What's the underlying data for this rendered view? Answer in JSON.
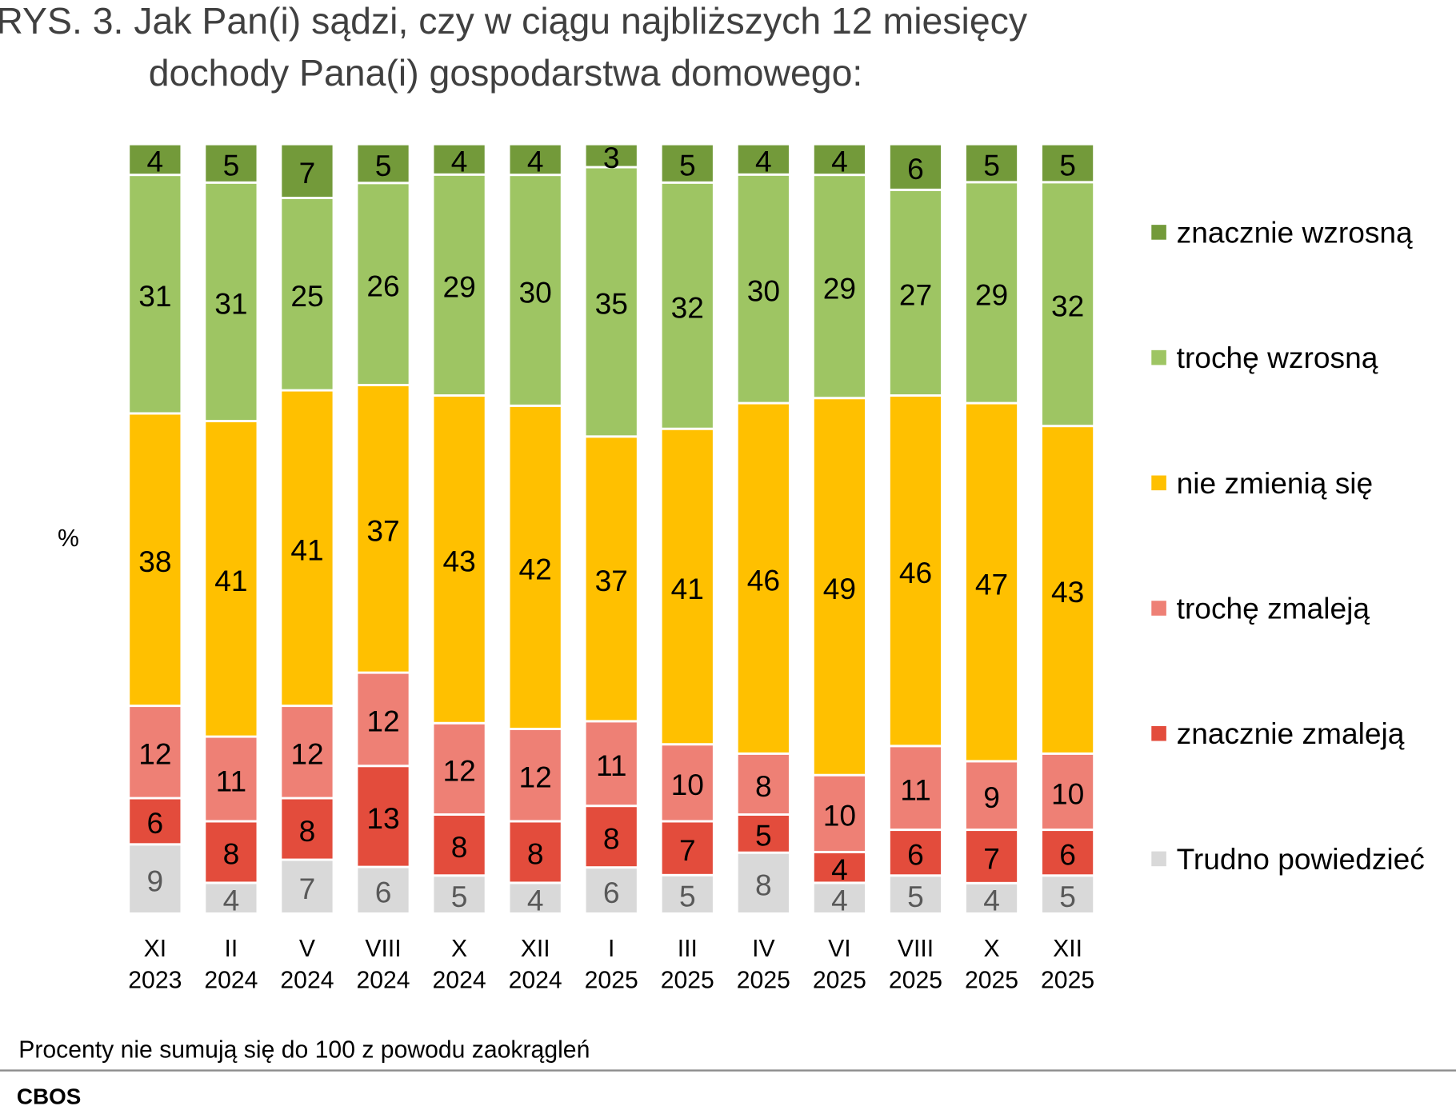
{
  "chart_data": {
    "type": "bar",
    "stacked": true,
    "orientation": "vertical",
    "title_line1": "RYS. 3. Jak Pan(i) sądzi, czy w ciągu najbliższych 12 miesięcy",
    "title_line2": "dochody Pana(i) gospodarstwa domowego:",
    "ylabel": "%",
    "categories": [
      {
        "month": "XI",
        "year": "2023"
      },
      {
        "month": "II",
        "year": "2024"
      },
      {
        "month": "V",
        "year": "2024"
      },
      {
        "month": "VIII",
        "year": "2024"
      },
      {
        "month": "X",
        "year": "2024"
      },
      {
        "month": "XII",
        "year": "2024"
      },
      {
        "month": "I",
        "year": "2025"
      },
      {
        "month": "III",
        "year": "2025"
      },
      {
        "month": "IV",
        "year": "2025"
      },
      {
        "month": "VI",
        "year": "2025"
      },
      {
        "month": "VIII",
        "year": "2025"
      },
      {
        "month": "X",
        "year": "2025"
      },
      {
        "month": "XII",
        "year": "2025"
      }
    ],
    "series": [
      {
        "name": "Trudno powiedzieć",
        "color": "#d9d9d9",
        "label_color": "#595959",
        "values": [
          9,
          4,
          7,
          6,
          5,
          4,
          6,
          5,
          8,
          4,
          5,
          4,
          5
        ]
      },
      {
        "name": "znacznie zmaleją",
        "color": "#e34c3c",
        "label_color": "#000000",
        "values": [
          6,
          8,
          8,
          13,
          8,
          8,
          8,
          7,
          5,
          4,
          6,
          7,
          6
        ]
      },
      {
        "name": "trochę zmaleją",
        "color": "#ee8075",
        "label_color": "#000000",
        "values": [
          12,
          11,
          12,
          12,
          12,
          12,
          11,
          10,
          8,
          10,
          11,
          9,
          10
        ]
      },
      {
        "name": "nie zmienią się",
        "color": "#ffc000",
        "label_color": "#000000",
        "values": [
          38,
          41,
          41,
          37,
          43,
          42,
          37,
          41,
          46,
          49,
          46,
          47,
          43
        ]
      },
      {
        "name": "trochę wzrosną",
        "color": "#9ec563",
        "label_color": "#000000",
        "values": [
          31,
          31,
          25,
          26,
          29,
          30,
          35,
          32,
          30,
          29,
          27,
          29,
          32
        ]
      },
      {
        "name": "znacznie wzrosną",
        "color": "#739a3a",
        "label_color": "#000000",
        "values": [
          4,
          5,
          7,
          5,
          4,
          4,
          3,
          5,
          4,
          4,
          6,
          5,
          5
        ]
      }
    ],
    "legend_position": "right",
    "grid": false,
    "footnote": "Procenty nie sumują się do 100 z powodu zaokrągleń",
    "source": "CBOS"
  }
}
